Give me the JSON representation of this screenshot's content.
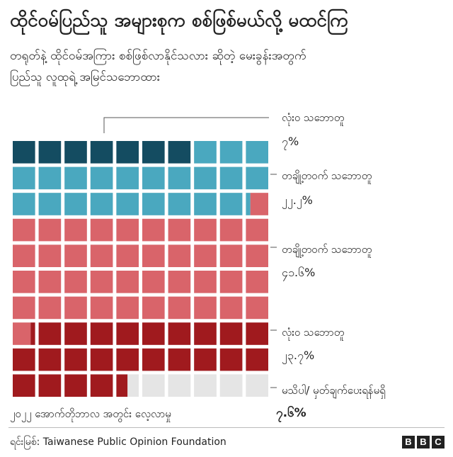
{
  "title": "ထိုင်ဝမ်ပြည်သူ အများစုက စစ်ဖြစ်မယ်လို့ မထင်ကြ",
  "subtitle": {
    "line1": "တရုတ်နဲ့ ထိုင်ဝမ်အကြား စစ်ဖြစ်လာနိုင်သလား ဆိုတဲ့ မေးခွန်းအတွက်",
    "line2": "ပြည်သူ လူထုရဲ့ အမြင်သဘောထား"
  },
  "note": "၂၀၂၂ အောက်တိုဘာလ အတွင်း လေ့လာမှု",
  "source": "ရင်းမြစ်: Taiwanese Public Opinion Foundation",
  "logo": [
    "B",
    "B",
    "C"
  ],
  "chart_data": {
    "type": "waffle",
    "total_squares": 100,
    "columns": 10,
    "empty_color": "#e5e5e5",
    "categories": [
      {
        "label": "လုံးဝ သဘောတူ",
        "value": 7.0,
        "value_label": "၇%",
        "color": "#144c61"
      },
      {
        "label": "တချို့တဝက် သဘောတူ",
        "value": 22.2,
        "value_label": "၂၂.၂%",
        "color": "#4aa8bf"
      },
      {
        "label": "တချို့တဝက် သဘောတူ",
        "value": 41.6,
        "value_label": "၄၁.၆%",
        "color": "#d9646a"
      },
      {
        "label": "လုံးဝ သဘောတူ",
        "value": 23.7,
        "value_label": "၂၃.၇%",
        "color": "#a01a1e"
      },
      {
        "label": "မသိပါ/ မှတ်ချက်ပေးရန်မရှိ",
        "value": 7.6,
        "value_label": "၇.၆%",
        "color": "#e5e5e5",
        "bold_value": true
      }
    ]
  }
}
